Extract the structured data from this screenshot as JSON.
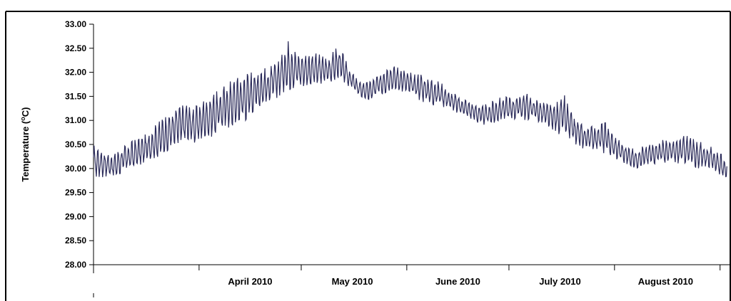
{
  "chart_data": {
    "type": "line",
    "title": "",
    "ylabel": "Temperature (",
    "ylabel_unit_sup": "o",
    "ylabel_unit_tail": "C)",
    "xlabel": "",
    "ylim": [
      28.0,
      33.0
    ],
    "yticks": [
      "28.00",
      "28.50",
      "29.00",
      "29.50",
      "30.00",
      "30.50",
      "31.00",
      "31.50",
      "32.00",
      "32.50",
      "33.00"
    ],
    "xlim": [
      "2010-03-01",
      "2010-09-04"
    ],
    "month_labels": [
      {
        "label": "April 2010",
        "date": "2010-04-16"
      },
      {
        "label": "May 2010",
        "date": "2010-05-16"
      },
      {
        "label": "June 2010",
        "date": "2010-06-16"
      },
      {
        "label": "July 2010",
        "date": "2010-07-16"
      },
      {
        "label": "August 2010",
        "date": "2010-08-16"
      }
    ],
    "month_boundaries": [
      "2010-03-01",
      "2010-04-01",
      "2010-05-01",
      "2010-06-01",
      "2010-07-01",
      "2010-08-01",
      "2010-09-01"
    ],
    "grid": false,
    "legend": "none",
    "line_color": "#2b2b5a",
    "series": [
      {
        "x": [
          "2010-03-01",
          "2010-03-04",
          "2010-03-07",
          "2010-03-10",
          "2010-03-13",
          "2010-03-16",
          "2010-03-19",
          "2010-03-22",
          "2010-03-25",
          "2010-03-28",
          "2010-03-31",
          "2010-04-03",
          "2010-04-06",
          "2010-04-09",
          "2010-04-12",
          "2010-04-15",
          "2010-04-18",
          "2010-04-21",
          "2010-04-24",
          "2010-04-27",
          "2010-04-30",
          "2010-05-03",
          "2010-05-06",
          "2010-05-09",
          "2010-05-12",
          "2010-05-15",
          "2010-05-18",
          "2010-05-21",
          "2010-05-24",
          "2010-05-27",
          "2010-05-30",
          "2010-06-02",
          "2010-06-05",
          "2010-06-08",
          "2010-06-11",
          "2010-06-14",
          "2010-06-17",
          "2010-06-20",
          "2010-06-23",
          "2010-06-26",
          "2010-06-29",
          "2010-07-02",
          "2010-07-05",
          "2010-07-08",
          "2010-07-11",
          "2010-07-14",
          "2010-07-17",
          "2010-07-20",
          "2010-07-23",
          "2010-07-26",
          "2010-07-29",
          "2010-08-01",
          "2010-08-04",
          "2010-08-07",
          "2010-08-10",
          "2010-08-13",
          "2010-08-16",
          "2010-08-19",
          "2010-08-22",
          "2010-08-25",
          "2010-08-28",
          "2010-08-31",
          "2010-09-03"
        ],
        "min": [
          29.8,
          29.8,
          29.8,
          29.9,
          30.0,
          30.1,
          30.2,
          30.3,
          30.4,
          30.5,
          30.5,
          30.6,
          30.7,
          30.8,
          30.9,
          31.0,
          31.2,
          31.3,
          31.4,
          31.6,
          31.7,
          31.7,
          31.7,
          31.8,
          31.8,
          31.7,
          31.5,
          31.4,
          31.5,
          31.6,
          31.6,
          31.5,
          31.4,
          31.3,
          31.3,
          31.2,
          31.1,
          31.0,
          30.9,
          30.9,
          31.0,
          31.0,
          31.0,
          31.0,
          30.9,
          30.8,
          30.6,
          30.5,
          30.4,
          30.4,
          30.3,
          30.2,
          30.1,
          30.0,
          30.0,
          30.1,
          30.1,
          30.1,
          30.1,
          30.0,
          30.0,
          29.9,
          29.8
        ],
        "max": [
          30.5,
          30.4,
          30.3,
          30.5,
          30.6,
          30.7,
          30.9,
          31.1,
          31.3,
          31.4,
          31.3,
          31.5,
          31.6,
          31.8,
          31.9,
          32.0,
          32.1,
          32.1,
          32.3,
          32.7,
          32.4,
          32.4,
          32.4,
          32.3,
          32.6,
          32.1,
          31.8,
          31.8,
          32.0,
          32.2,
          32.1,
          32.0,
          32.0,
          31.9,
          31.8,
          31.6,
          31.5,
          31.4,
          31.3,
          31.4,
          31.5,
          31.5,
          31.6,
          31.5,
          31.4,
          31.3,
          31.6,
          31.1,
          30.9,
          30.9,
          31.0,
          30.7,
          30.5,
          30.4,
          30.5,
          30.6,
          30.6,
          30.6,
          30.7,
          30.6,
          30.5,
          30.4,
          30.2
        ]
      }
    ]
  }
}
